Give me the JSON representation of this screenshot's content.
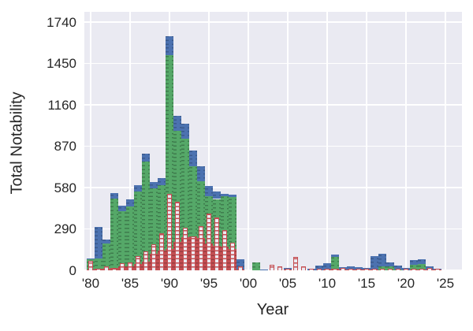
{
  "figure": {
    "background_color": "#ffffff",
    "plot_background_color": "#eaeaf2",
    "grid_color": "#ffffff",
    "text_color": "#262626"
  },
  "chart_data": {
    "type": "bar",
    "subtype": "stacked-histogram-with-outline-overlay",
    "title": "",
    "xlabel": "Year",
    "ylabel": "Total Notability",
    "xlim": [
      1979,
      2027
    ],
    "ylim": [
      0,
      1812
    ],
    "grid": true,
    "legend": false,
    "yticks": [
      0,
      290,
      580,
      870,
      1160,
      1450,
      1740
    ],
    "ytick_labels": [
      "0",
      "290",
      "580",
      "870",
      "1160",
      "1450",
      "1740"
    ],
    "xticks": [
      1980,
      1985,
      1990,
      1995,
      2000,
      2005,
      2010,
      2015,
      2020,
      2025
    ],
    "xtick_labels": [
      "'80",
      "'85",
      "'90",
      "'95",
      "'00",
      "'05",
      "'10",
      "'15",
      "'20",
      "'25"
    ],
    "x": [
      1980,
      1981,
      1982,
      1983,
      1984,
      1985,
      1986,
      1987,
      1988,
      1989,
      1990,
      1991,
      1992,
      1993,
      1994,
      1995,
      1996,
      1997,
      1998,
      1999,
      2000,
      2001,
      2002,
      2003,
      2004,
      2005,
      2006,
      2007,
      2008,
      2009,
      2010,
      2011,
      2012,
      2013,
      2014,
      2015,
      2016,
      2017,
      2018,
      2019,
      2020,
      2021,
      2022,
      2023,
      2024
    ],
    "series": [
      {
        "name": "red-filled",
        "color": "#c44e52",
        "hatch": "-",
        "hatch_color": "#993d41",
        "stacked": true,
        "values": [
          5,
          10,
          10,
          15,
          25,
          30,
          45,
          60,
          115,
          140,
          150,
          200,
          230,
          235,
          225,
          190,
          170,
          165,
          150,
          5,
          0,
          0,
          0,
          0,
          0,
          5,
          0,
          0,
          0,
          0,
          5,
          10,
          5,
          5,
          5,
          5,
          5,
          0,
          0,
          0,
          0,
          5,
          5,
          5,
          5
        ]
      },
      {
        "name": "green-filled",
        "color": "#55a868",
        "hatch": "-",
        "hatch_color": "#3e7c4d",
        "stacked": true,
        "values": [
          70,
          75,
          180,
          490,
          390,
          420,
          505,
          700,
          460,
          455,
          1360,
          780,
          690,
          495,
          400,
          330,
          330,
          355,
          365,
          0,
          0,
          55,
          0,
          0,
          0,
          0,
          0,
          0,
          0,
          0,
          0,
          85,
          0,
          0,
          0,
          0,
          0,
          30,
          25,
          5,
          0,
          35,
          40,
          0,
          0
        ]
      },
      {
        "name": "blue-filled",
        "color": "#4c72b0",
        "hatch": "-",
        "hatch_color": "#3a5a8c",
        "stacked": true,
        "values": [
          10,
          220,
          25,
          35,
          40,
          45,
          45,
          60,
          45,
          50,
          130,
          105,
          110,
          110,
          105,
          70,
          50,
          15,
          15,
          75,
          0,
          0,
          5,
          0,
          0,
          10,
          0,
          0,
          10,
          35,
          45,
          15,
          20,
          25,
          20,
          10,
          95,
          85,
          30,
          30,
          15,
          30,
          35,
          25,
          5
        ]
      },
      {
        "name": "red-outline",
        "color": "#ecebf3",
        "edge_color": "#c44e52",
        "hatch": "-",
        "hatch_color": "#c44e52",
        "stacked": false,
        "overlay": true,
        "values": [
          65,
          10,
          30,
          10,
          50,
          55,
          100,
          130,
          180,
          260,
          535,
          480,
          300,
          240,
          310,
          400,
          370,
          280,
          195,
          25,
          0,
          0,
          0,
          40,
          30,
          8,
          95,
          25,
          5,
          5,
          8,
          12,
          15,
          5,
          5,
          10,
          8,
          10,
          5,
          5,
          5,
          8,
          10,
          15,
          8
        ]
      }
    ]
  },
  "axes": {
    "ylabel": "Total Notability",
    "xlabel": "Year"
  }
}
